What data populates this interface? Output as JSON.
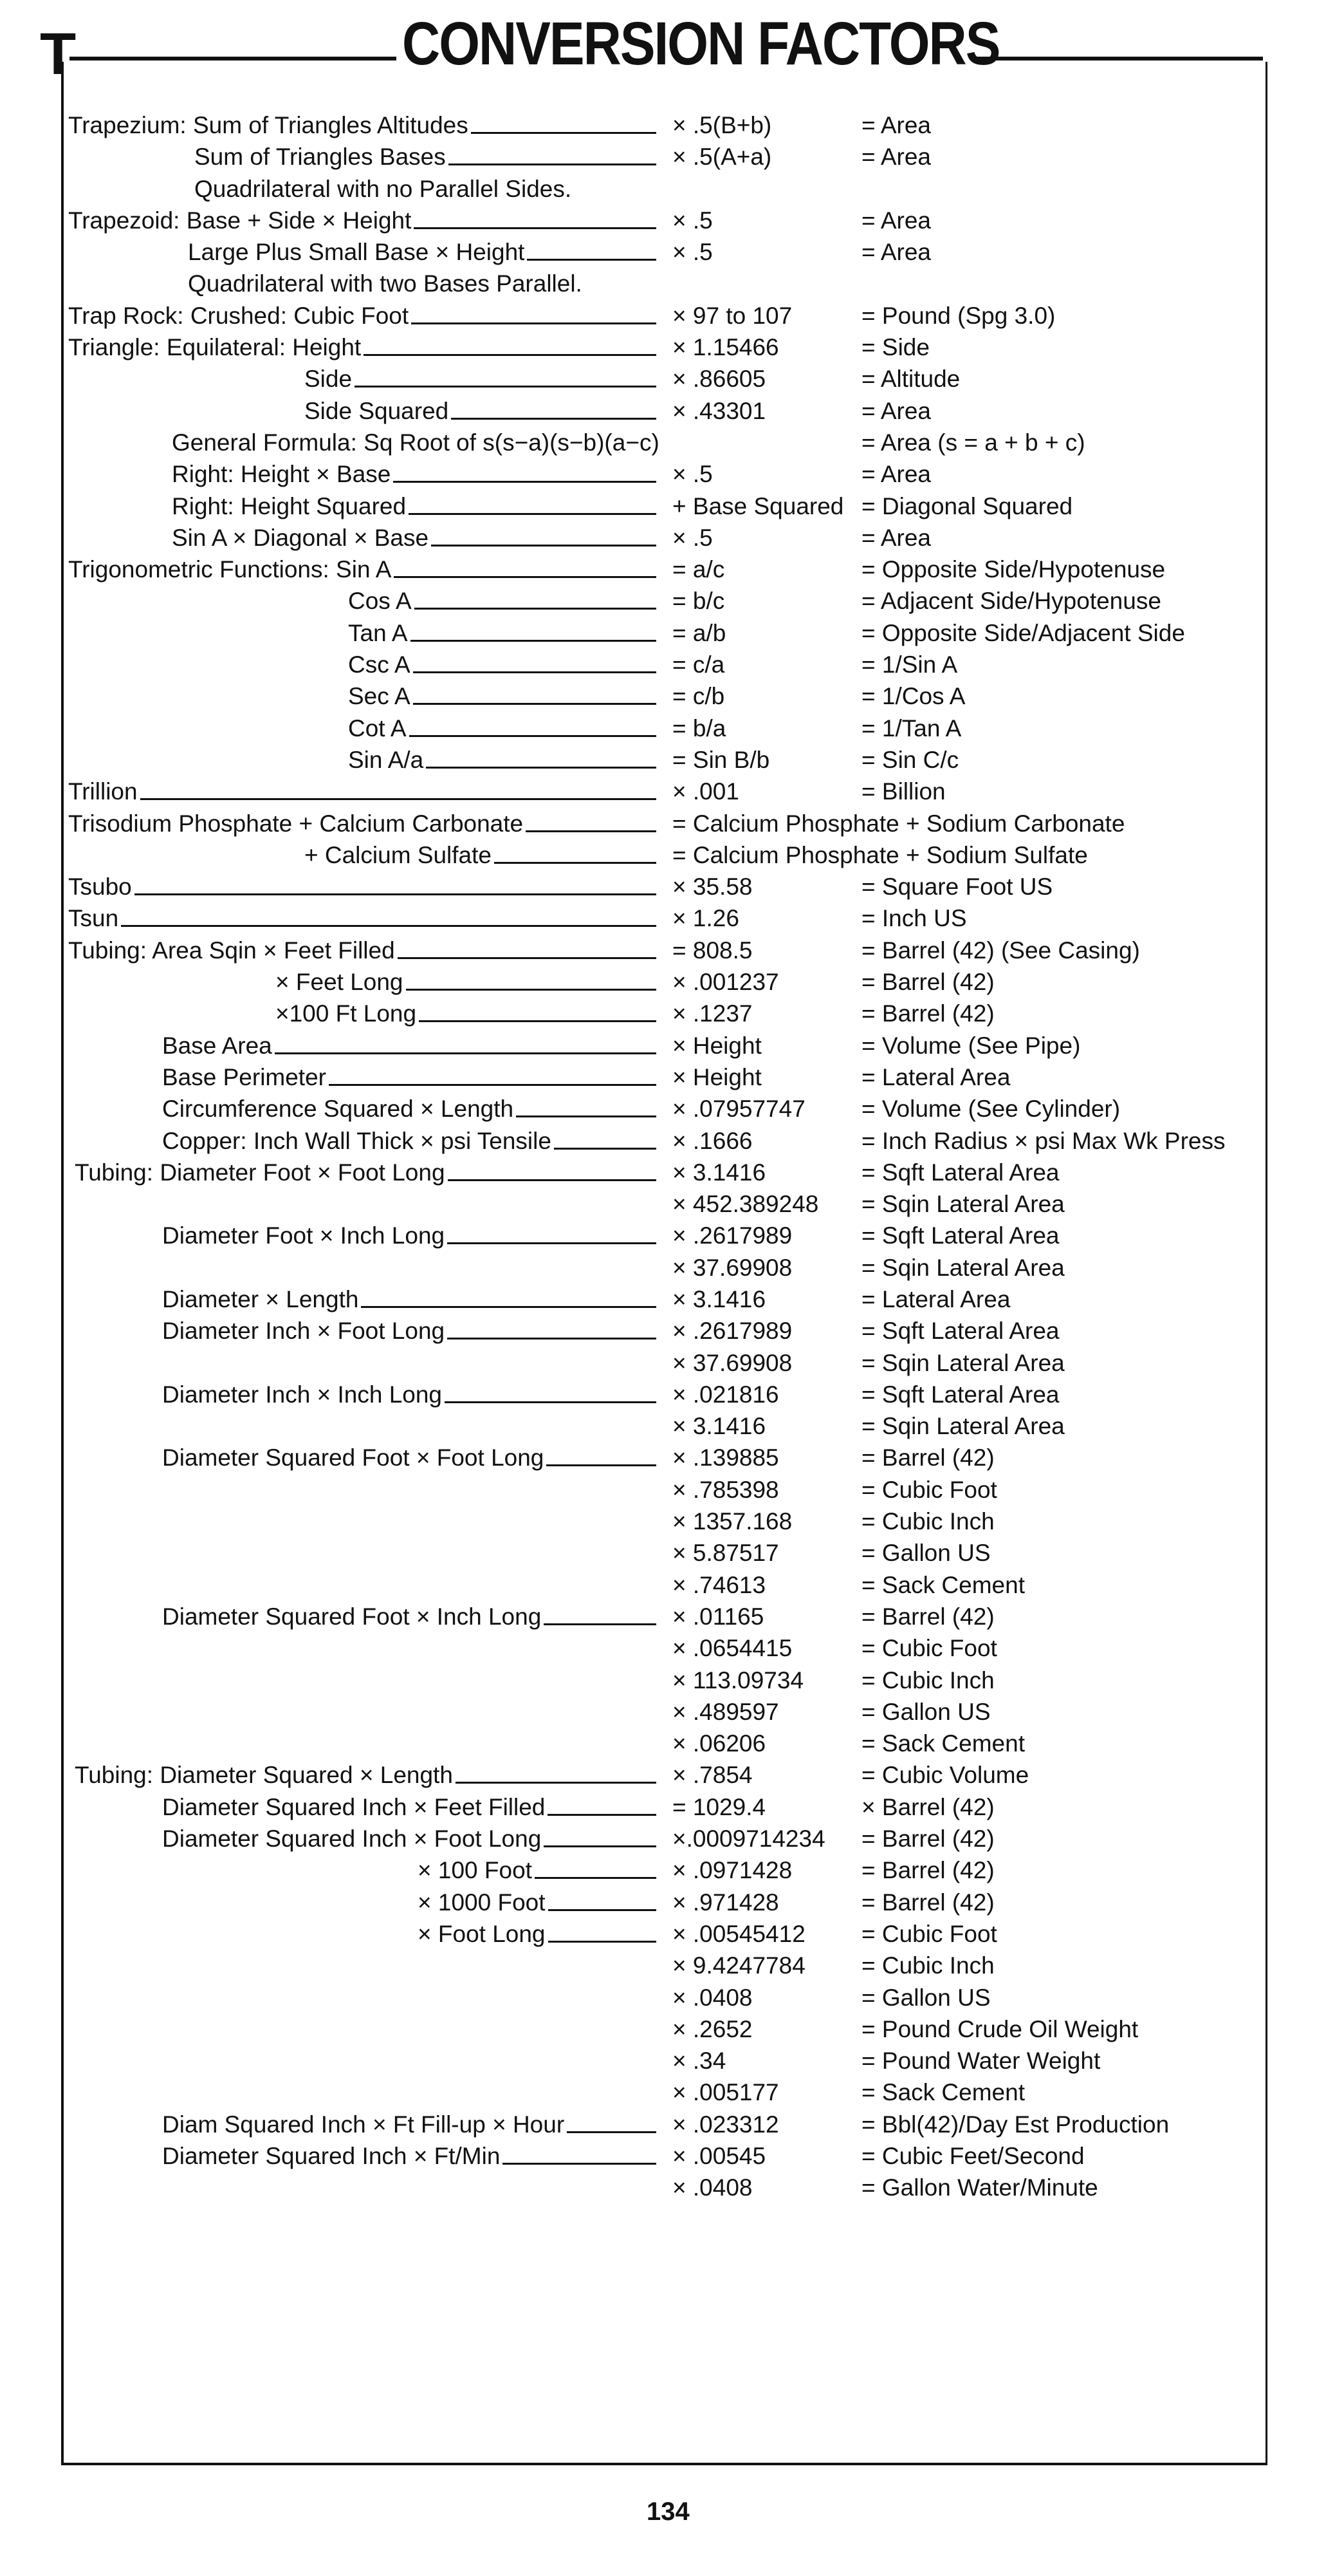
{
  "header": {
    "section_letter": "T",
    "title": "CONVERSION FACTORS"
  },
  "rows": [
    {
      "label": "Trapezium: Sum of Triangles Altitudes",
      "value": "× .5(B+b)",
      "result": "= Area"
    },
    {
      "label": "Sum of Triangles Bases",
      "value": "× .5(A+a)",
      "result": "= Area"
    },
    {
      "label": "Quadrilateral with no Parallel Sides.",
      "value": "",
      "result": ""
    },
    {
      "label": "Trapezoid: Base + Side × Height",
      "value": "× .5",
      "result": "= Area"
    },
    {
      "label": "Large Plus Small Base × Height",
      "value": "× .5",
      "result": "= Area"
    },
    {
      "label": "Quadrilateral with two Bases Parallel.",
      "value": "",
      "result": ""
    },
    {
      "label": "Trap Rock: Crushed: Cubic Foot",
      "value": "× 97 to 107",
      "result": "= Pound (Spg 3.0)"
    },
    {
      "label": "Triangle: Equilateral: Height",
      "value": "× 1.15466",
      "result": "= Side"
    },
    {
      "label": "Side",
      "value": "× .86605",
      "result": "= Altitude"
    },
    {
      "label": "Side Squared",
      "value": "× .43301",
      "result": "= Area"
    },
    {
      "label": "General Formula: Sq Root of s(s−a)(s−b)(a−c)",
      "value": "",
      "result": "= Area (s = a + b + c)"
    },
    {
      "label": "Right: Height × Base",
      "value": "× .5",
      "result": "= Area"
    },
    {
      "label": "Right: Height Squared",
      "value": "+ Base Squared",
      "result": "= Diagonal Squared"
    },
    {
      "label": "Sin A × Diagonal × Base",
      "value": "× .5",
      "result": "= Area"
    },
    {
      "label": "Trigonometric Functions: Sin A",
      "value": "= a/c",
      "result": "= Opposite Side/Hypotenuse"
    },
    {
      "label": "Cos A",
      "value": "= b/c",
      "result": "= Adjacent Side/Hypotenuse"
    },
    {
      "label": "Tan A",
      "value": "= a/b",
      "result": "= Opposite Side/Adjacent Side"
    },
    {
      "label": "Csc A",
      "value": "= c/a",
      "result": "= 1/Sin A"
    },
    {
      "label": "Sec A",
      "value": "= c/b",
      "result": "= 1/Cos A"
    },
    {
      "label": "Cot A",
      "value": "= b/a",
      "result": "= 1/Tan A"
    },
    {
      "label": "Sin A/a",
      "value": "= Sin B/b",
      "result": "= Sin C/c"
    },
    {
      "label": "Trillion",
      "value": "× .001",
      "result": "= Billion"
    },
    {
      "label": "Trisodium Phosphate + Calcium Carbonate",
      "value": "= Calcium Phosphate + Sodium Carbonate",
      "result": ""
    },
    {
      "label": "+ Calcium Sulfate",
      "value": "= Calcium Phosphate + Sodium Sulfate",
      "result": ""
    },
    {
      "label": "Tsubo",
      "value": "× 35.58",
      "result": "= Square Foot US"
    },
    {
      "label": "Tsun",
      "value": "× 1.26",
      "result": "= Inch US"
    },
    {
      "label": "Tubing: Area Sqin × Feet Filled",
      "value": "= 808.5",
      "result": "= Barrel (42) (See Casing)"
    },
    {
      "label": "× Feet Long",
      "value": "× .001237",
      "result": "= Barrel (42)"
    },
    {
      "label": "×100 Ft Long",
      "value": "× .1237",
      "result": "= Barrel (42)"
    },
    {
      "label": "Base Area",
      "value": "× Height",
      "result": "= Volume (See Pipe)"
    },
    {
      "label": "Base Perimeter",
      "value": "× Height",
      "result": "= Lateral Area"
    },
    {
      "label": "Circumference Squared × Length",
      "value": "× .07957747",
      "result": "= Volume (See Cylinder)"
    },
    {
      "label": "Copper: Inch Wall Thick × psi Tensile",
      "value": "× .1666",
      "result": "= Inch Radius × psi Max Wk Press"
    },
    {
      "label": "Tubing: Diameter Foot × Foot Long",
      "value": "× 3.1416",
      "result": "= Sqft Lateral Area"
    },
    {
      "label": "",
      "value": "× 452.389248",
      "result": "= Sqin Lateral Area"
    },
    {
      "label": "Diameter Foot × Inch Long",
      "value": "× .2617989",
      "result": "= Sqft Lateral Area"
    },
    {
      "label": "",
      "value": "× 37.69908",
      "result": "= Sqin Lateral Area"
    },
    {
      "label": "Diameter × Length",
      "value": "× 3.1416",
      "result": "= Lateral Area"
    },
    {
      "label": "Diameter Inch × Foot Long",
      "value": "× .2617989",
      "result": "= Sqft Lateral Area"
    },
    {
      "label": "",
      "value": "× 37.69908",
      "result": "= Sqin Lateral Area"
    },
    {
      "label": "Diameter Inch × Inch Long",
      "value": "× .021816",
      "result": "= Sqft Lateral Area"
    },
    {
      "label": "",
      "value": "× 3.1416",
      "result": "= Sqin Lateral Area"
    },
    {
      "label": "Diameter Squared Foot × Foot Long",
      "value": "× .139885",
      "result": "= Barrel (42)"
    },
    {
      "label": "",
      "value": "× .785398",
      "result": "= Cubic Foot"
    },
    {
      "label": "",
      "value": "× 1357.168",
      "result": "= Cubic Inch"
    },
    {
      "label": "",
      "value": "× 5.87517",
      "result": "= Gallon US"
    },
    {
      "label": "",
      "value": "× .74613",
      "result": "= Sack Cement"
    },
    {
      "label": "Diameter Squared Foot × Inch Long",
      "value": "× .01165",
      "result": "= Barrel (42)"
    },
    {
      "label": "",
      "value": "× .0654415",
      "result": "= Cubic Foot"
    },
    {
      "label": "",
      "value": "× 113.09734",
      "result": "= Cubic Inch"
    },
    {
      "label": "",
      "value": "× .489597",
      "result": "= Gallon US"
    },
    {
      "label": "",
      "value": "× .06206",
      "result": "= Sack Cement"
    },
    {
      "label": "Tubing: Diameter Squared × Length",
      "value": "× .7854",
      "result": "= Cubic Volume"
    },
    {
      "label": "Diameter Squared Inch × Feet Filled",
      "value": "= 1029.4",
      "result": "× Barrel (42)"
    },
    {
      "label": "Diameter Squared Inch × Foot Long",
      "value": "×.0009714234",
      "result": "= Barrel (42)"
    },
    {
      "label": "× 100 Foot",
      "value": "× .0971428",
      "result": "= Barrel (42)"
    },
    {
      "label": "× 1000 Foot",
      "value": "× .971428",
      "result": "= Barrel (42)"
    },
    {
      "label": "× Foot Long",
      "value": "× .00545412",
      "result": "= Cubic Foot"
    },
    {
      "label": "",
      "value": "× 9.4247784",
      "result": "= Cubic Inch"
    },
    {
      "label": "",
      "value": "× .0408",
      "result": "= Gallon US"
    },
    {
      "label": "",
      "value": "× .2652",
      "result": "= Pound Crude Oil Weight"
    },
    {
      "label": "",
      "value": "× .34",
      "result": "= Pound Water Weight"
    },
    {
      "label": "",
      "value": "× .005177",
      "result": "= Sack Cement"
    },
    {
      "label": "Diam Squared Inch × Ft Fill-up × Hour",
      "value": "× .023312",
      "result": "= Bbl(42)/Day Est Production"
    },
    {
      "label": "Diameter Squared Inch × Ft/Min",
      "value": "× .00545",
      "result": "= Cubic Feet/Second"
    },
    {
      "label": "",
      "value": "× .0408",
      "result": "= Gallon Water/Minute"
    }
  ],
  "footer": {
    "page_number": "134"
  }
}
